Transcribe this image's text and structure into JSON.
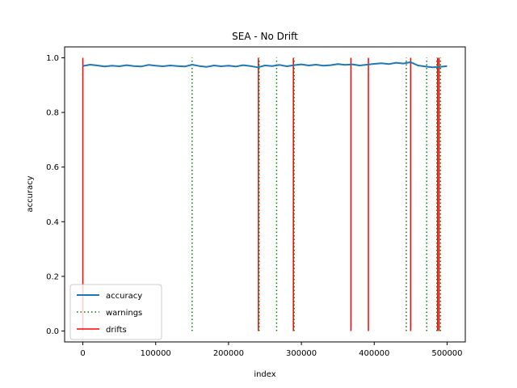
{
  "chart_data": {
    "type": "line",
    "title": "SEA - No Drift",
    "xlabel": "index",
    "ylabel": "accuracy",
    "xlim": [
      -25000,
      525000
    ],
    "ylim": [
      -0.04,
      1.04
    ],
    "xticks": [
      0,
      100000,
      200000,
      300000,
      400000,
      500000
    ],
    "xtick_labels": [
      "0",
      "100000",
      "200000",
      "300000",
      "400000",
      "500000"
    ],
    "yticks": [
      0.0,
      0.2,
      0.4,
      0.6,
      0.8,
      1.0
    ],
    "ytick_labels": [
      "0.0",
      "0.2",
      "0.4",
      "0.6",
      "0.8",
      "1.0"
    ],
    "legend_position": "lower-left",
    "series": [
      {
        "name": "accuracy",
        "color": "#1f77b4",
        "style": "solid",
        "x": [
          0,
          10000,
          20000,
          30000,
          40000,
          50000,
          60000,
          70000,
          80000,
          90000,
          100000,
          110000,
          120000,
          130000,
          140000,
          150000,
          160000,
          170000,
          180000,
          190000,
          200000,
          210000,
          220000,
          230000,
          240000,
          250000,
          260000,
          270000,
          280000,
          290000,
          300000,
          310000,
          320000,
          330000,
          340000,
          350000,
          360000,
          370000,
          380000,
          390000,
          400000,
          410000,
          420000,
          430000,
          440000,
          450000,
          460000,
          470000,
          480000,
          490000,
          500000
        ],
        "y": [
          0.97,
          0.975,
          0.972,
          0.968,
          0.971,
          0.969,
          0.973,
          0.97,
          0.968,
          0.974,
          0.971,
          0.969,
          0.972,
          0.97,
          0.968,
          0.975,
          0.97,
          0.967,
          0.972,
          0.969,
          0.971,
          0.968,
          0.973,
          0.97,
          0.965,
          0.972,
          0.97,
          0.974,
          0.969,
          0.973,
          0.976,
          0.972,
          0.975,
          0.971,
          0.973,
          0.977,
          0.974,
          0.976,
          0.972,
          0.975,
          0.978,
          0.98,
          0.977,
          0.982,
          0.979,
          0.984,
          0.972,
          0.968,
          0.965,
          0.967,
          0.97
        ]
      }
    ],
    "warnings": {
      "name": "warnings",
      "color": "#008000",
      "style": "dotted",
      "x": [
        150000,
        242000,
        266000,
        290000,
        444000,
        472000,
        486000,
        491000
      ],
      "ymin": 0,
      "ymax": 1
    },
    "drifts": {
      "name": "drifts",
      "color": "#ff0000",
      "style": "solid",
      "x": [
        0,
        241000,
        289000,
        368000,
        392000,
        450000,
        487000,
        489000
      ],
      "ymin": 0,
      "ymax": 1
    }
  }
}
